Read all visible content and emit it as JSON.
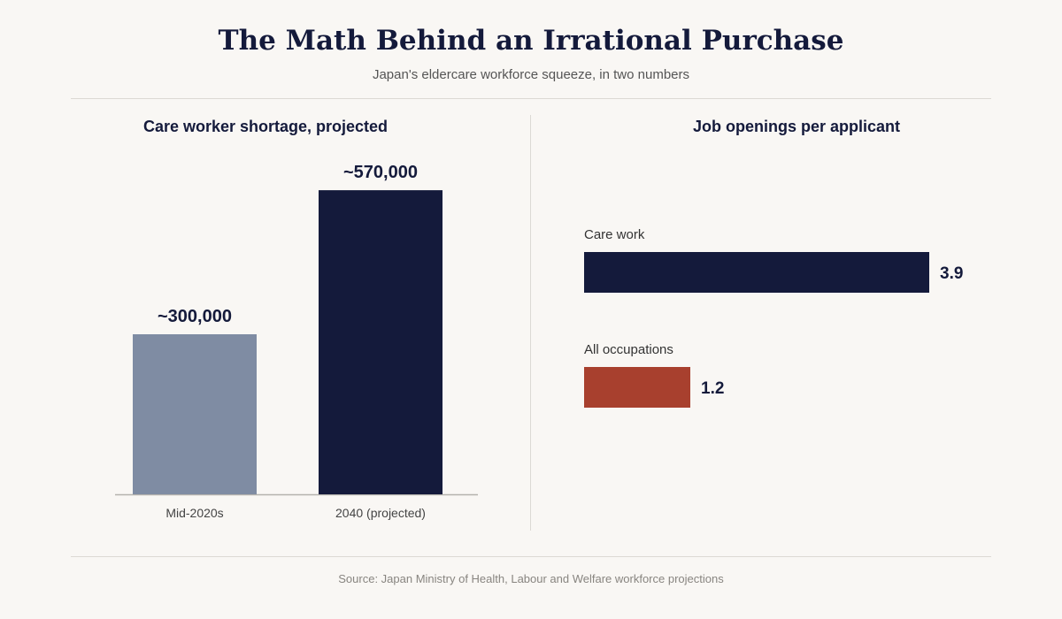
{
  "title": "The Math Behind an Irrational Purchase",
  "subtitle": "Japan's eldercare workforce squeeze, in two numbers",
  "source": "Source: Japan Ministry of Health, Labour and Welfare workforce projections",
  "colors": {
    "navy": "#141a3b",
    "slate": "#7f8ca3",
    "rust": "#a8402e",
    "background": "#f9f7f4"
  },
  "chart_data": [
    {
      "type": "bar",
      "orientation": "vertical",
      "title": "Care worker shortage, projected",
      "categories": [
        "Mid-2020s",
        "2040 (projected)"
      ],
      "values": [
        300000,
        570000
      ],
      "value_labels": [
        "~300,000",
        "~570,000"
      ],
      "colors": [
        "#7f8ca3",
        "#141a3b"
      ],
      "ylim": [
        0,
        600000
      ],
      "grid": false,
      "legend": "none"
    },
    {
      "type": "bar",
      "orientation": "horizontal",
      "title": "Job openings per applicant",
      "categories": [
        "Care work",
        "All occupations"
      ],
      "values": [
        3.9,
        1.2
      ],
      "value_labels": [
        "3.9",
        "1.2"
      ],
      "colors": [
        "#141a3b",
        "#a8402e"
      ],
      "xlim": [
        0,
        3.9
      ],
      "grid": false,
      "legend": "none"
    }
  ]
}
